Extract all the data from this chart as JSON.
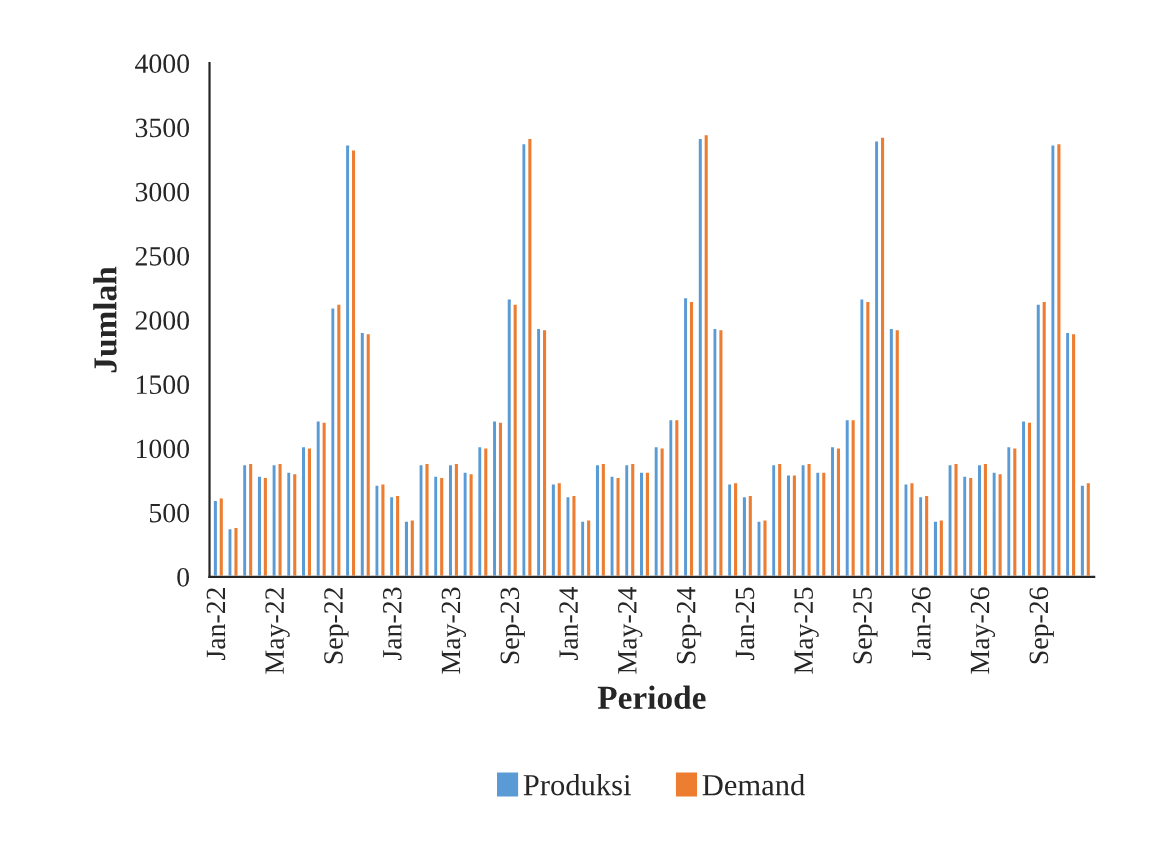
{
  "chart_data": {
    "type": "bar",
    "xlabel": "Periode",
    "ylabel": "Jumlah",
    "categories": [
      "Jan-22",
      null,
      null,
      null,
      "May-22",
      null,
      null,
      null,
      "Sep-22",
      null,
      null,
      null,
      "Jan-23",
      null,
      null,
      null,
      "May-23",
      null,
      null,
      null,
      "Sep-23",
      null,
      null,
      null,
      "Jan-24",
      null,
      null,
      null,
      "May-24",
      null,
      null,
      null,
      "Sep-24",
      null,
      null,
      null,
      "Jan-25",
      null,
      null,
      null,
      "May-25",
      null,
      null,
      null,
      "Sep-25",
      null,
      null,
      null,
      "Jan-26",
      null,
      null,
      null,
      "May-26",
      null,
      null,
      null,
      "Sep-26",
      null,
      null,
      null
    ],
    "series": [
      {
        "name": "Produksi",
        "color": "#5b9bd5",
        "values": [
          600,
          380,
          880,
          790,
          880,
          820,
          1020,
          1220,
          2100,
          3370,
          1910,
          720,
          630,
          440,
          880,
          790,
          880,
          820,
          1020,
          1220,
          2170,
          3380,
          1940,
          730,
          630,
          440,
          880,
          790,
          880,
          820,
          1020,
          1230,
          2180,
          3420,
          1940,
          730,
          630,
          440,
          880,
          800,
          880,
          820,
          1020,
          1230,
          2170,
          3400,
          1940,
          730,
          630,
          440,
          880,
          790,
          880,
          820,
          1020,
          1220,
          2130,
          3370,
          1910,
          720
        ]
      },
      {
        "name": "Demand",
        "color": "#ed7d31",
        "values": [
          620,
          390,
          890,
          780,
          890,
          810,
          1010,
          1210,
          2130,
          3330,
          1900,
          730,
          640,
          450,
          890,
          780,
          890,
          810,
          1010,
          1210,
          2130,
          3420,
          1930,
          740,
          640,
          450,
          890,
          780,
          890,
          820,
          1010,
          1230,
          2150,
          3450,
          1930,
          740,
          640,
          450,
          890,
          800,
          890,
          820,
          1010,
          1230,
          2150,
          3430,
          1930,
          740,
          640,
          450,
          890,
          780,
          890,
          810,
          1010,
          1210,
          2150,
          3380,
          1900,
          740
        ]
      }
    ],
    "ylim": [
      0,
      4000
    ],
    "yticks": [
      0,
      500,
      1000,
      1500,
      2000,
      2500,
      3000,
      3500,
      4000
    ],
    "grid": false,
    "legend": "bottom"
  }
}
